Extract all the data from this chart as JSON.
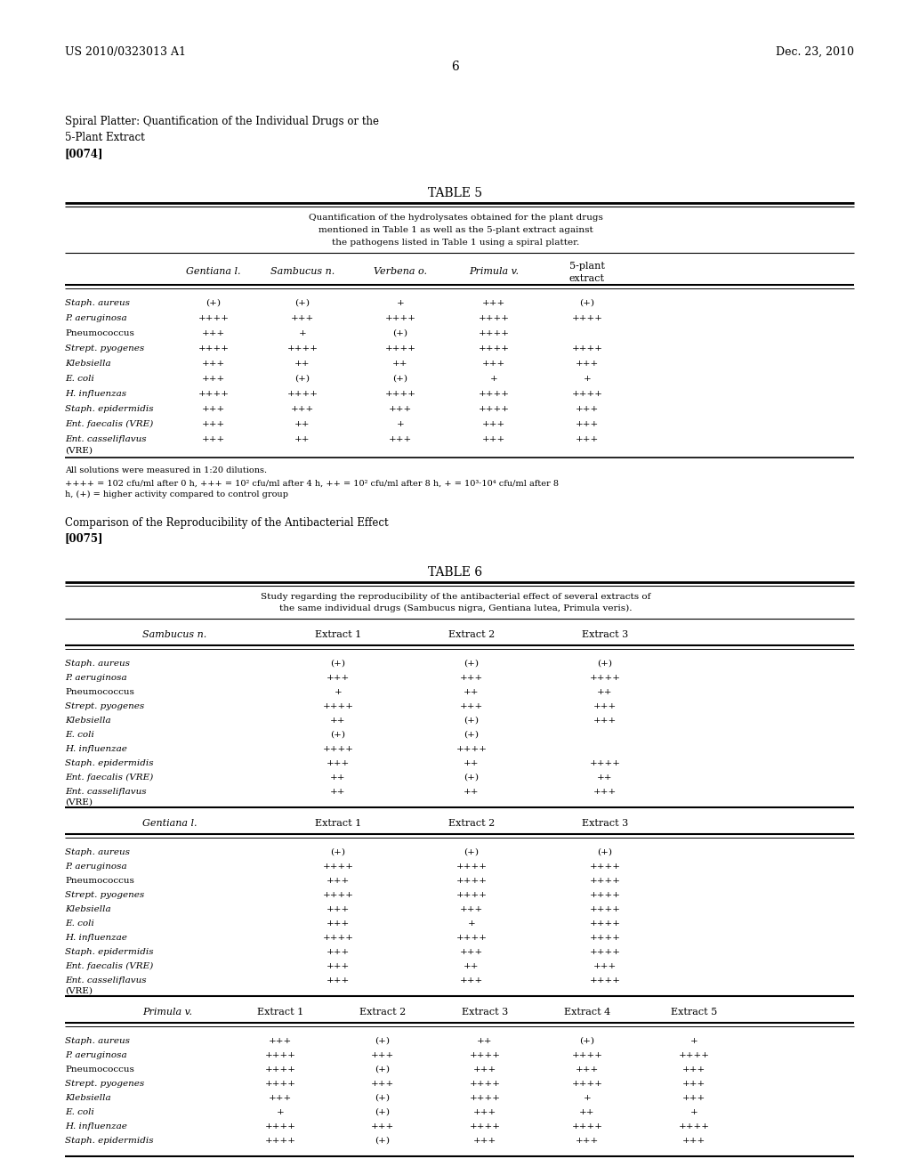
{
  "header_left": "US 2010/0323013 A1",
  "header_right": "Dec. 23, 2010",
  "page_number": "6",
  "section1_line1": "Spiral Platter: Quantification of the Individual Drugs or the",
  "section1_line2": "5-Plant Extract",
  "section1_ref": "[0074]",
  "table5_title": "TABLE 5",
  "table5_caption_lines": [
    "Quantification of the hydrolysates obtained for the plant drugs",
    "mentioned in Table 1 as well as the 5-plant extract against",
    "the pathogens listed in Table 1 using a spiral platter."
  ],
  "table5_col_headers": [
    "Gentiana l.",
    "Sambucus n.",
    "Verbena o.",
    "Primula v.",
    "5-plant\nextract"
  ],
  "table5_rows": [
    [
      "Staph. aureus",
      "(+)",
      "(+)",
      "+",
      "+++",
      "(+)"
    ],
    [
      "P. aeruginosa",
      "++++",
      "+++",
      "++++",
      "++++",
      "++++"
    ],
    [
      "Pneumococcus",
      "+++",
      "+",
      "(+)",
      "++++",
      ""
    ],
    [
      "Strept. pyogenes",
      "++++",
      "++++",
      "++++",
      "++++",
      "++++"
    ],
    [
      "Klebsiella",
      "+++",
      "++",
      "++",
      "+++",
      "+++"
    ],
    [
      "E. coli",
      "+++",
      "(+)",
      "(+)",
      "+",
      "+"
    ],
    [
      "H. influenzas",
      "++++",
      "++++",
      "++++",
      "++++",
      "++++"
    ],
    [
      "Staph. epidermidis",
      "+++",
      "+++",
      "+++",
      "++++",
      "+++"
    ],
    [
      "Ent. faecalis (VRE)",
      "+++",
      "++",
      "+",
      "+++",
      "+++"
    ],
    [
      "Ent. casseliflavus\n(VRE)",
      "+++",
      "++",
      "+++",
      "+++",
      "+++"
    ]
  ],
  "table5_row_italic": [
    true,
    true,
    false,
    true,
    true,
    true,
    true,
    true,
    true,
    true
  ],
  "table5_fn1": "All solutions were measured in 1:20 dilutions.",
  "table5_fn2a": "++++ = 102 cfu/ml after 0 h, +++ = 10",
  "table5_fn2b": "2",
  "table5_fn2c": " cfu/ml after 4 h, ++ = 10",
  "table5_fn2d": "2",
  "table5_fn2e": " cfu/ml after 8 h, + = 10",
  "table5_fn2f": "3",
  "table5_fn2g": "·10",
  "table5_fn2h": "4",
  "table5_fn2i": " cfu/ml after 8",
  "table5_fn3": "h, (+) = higher activity compared to control group",
  "section2_line1": "Comparison of the Reproducibility of the Antibacterial Effect",
  "section2_ref": "[0075]",
  "table6_title": "TABLE 6",
  "table6_caption_lines": [
    "Study regarding the reproducibility of the antibacterial effect of several extracts of",
    "the same individual drugs (Sambucus nigra, Gentiana lutea, Primula veris)."
  ],
  "table6_sambucus_hdr": [
    "Sambucus n.",
    "Extract 1",
    "Extract 2",
    "Extract 3"
  ],
  "table6_sambucus_rows": [
    [
      "Staph. aureus",
      "(+)",
      "(+)",
      "(+)"
    ],
    [
      "P. aeruginosa",
      "+++",
      "+++",
      "++++"
    ],
    [
      "Pneumococcus",
      "+",
      "++",
      "++"
    ],
    [
      "Strept. pyogenes",
      "++++",
      "+++",
      "+++"
    ],
    [
      "Klebsiella",
      "++",
      "(+)",
      "+++"
    ],
    [
      "E. coli",
      "(+)",
      "(+)",
      ""
    ],
    [
      "H. influenzae",
      "++++",
      "++++",
      ""
    ],
    [
      "Staph. epidermidis",
      "+++",
      "++",
      "++++"
    ],
    [
      "Ent. faecalis (VRE)",
      "++",
      "(+)",
      "++"
    ],
    [
      "Ent. casseliflavus\n(VRE)",
      "++",
      "++",
      "+++"
    ]
  ],
  "table6_gentiana_hdr": [
    "Gentiana l.",
    "Extract 1",
    "Extract 2",
    "Extract 3"
  ],
  "table6_gentiana_rows": [
    [
      "Staph. aureus",
      "(+)",
      "(+)",
      "(+)"
    ],
    [
      "P. aeruginosa",
      "++++",
      "++++",
      "++++"
    ],
    [
      "Pneumococcus",
      "+++",
      "++++",
      "++++"
    ],
    [
      "Strept. pyogenes",
      "++++",
      "++++",
      "++++"
    ],
    [
      "Klebsiella",
      "+++",
      "+++",
      "++++"
    ],
    [
      "E. coli",
      "+++",
      "+",
      "++++"
    ],
    [
      "H. influenzae",
      "++++",
      "++++",
      "++++"
    ],
    [
      "Staph. epidermidis",
      "+++",
      "+++",
      "++++"
    ],
    [
      "Ent. faecalis (VRE)",
      "+++",
      "++",
      "+++"
    ],
    [
      "Ent. casseliflavus\n(VRE)",
      "+++",
      "+++",
      "++++"
    ]
  ],
  "table6_primula_hdr": [
    "Primula v.",
    "Extract 1",
    "Extract 2",
    "Extract 3",
    "Extract 4",
    "Extract 5"
  ],
  "table6_primula_rows": [
    [
      "Staph. aureus",
      "+++",
      "(+)",
      "++",
      "(+)",
      "+"
    ],
    [
      "P. aeruginosa",
      "++++",
      "+++",
      "++++",
      "++++",
      "++++"
    ],
    [
      "Pneumococcus",
      "++++",
      "(+)",
      "+++",
      "+++",
      "+++"
    ],
    [
      "Strept. pyogenes",
      "++++",
      "+++",
      "++++",
      "++++",
      "+++"
    ],
    [
      "Klebsiella",
      "+++",
      "(+)",
      "++++",
      "+",
      "+++"
    ],
    [
      "E. coli",
      "+",
      "(+)",
      "+++",
      "++",
      "+"
    ],
    [
      "H. influenzae",
      "++++",
      "+++",
      "++++",
      "++++",
      "++++"
    ],
    [
      "Staph. epidermidis",
      "++++",
      "(+)",
      "+++",
      "+++",
      "+++"
    ]
  ],
  "row_italic": [
    true,
    true,
    false,
    true,
    true,
    true,
    true,
    true,
    true,
    true
  ]
}
